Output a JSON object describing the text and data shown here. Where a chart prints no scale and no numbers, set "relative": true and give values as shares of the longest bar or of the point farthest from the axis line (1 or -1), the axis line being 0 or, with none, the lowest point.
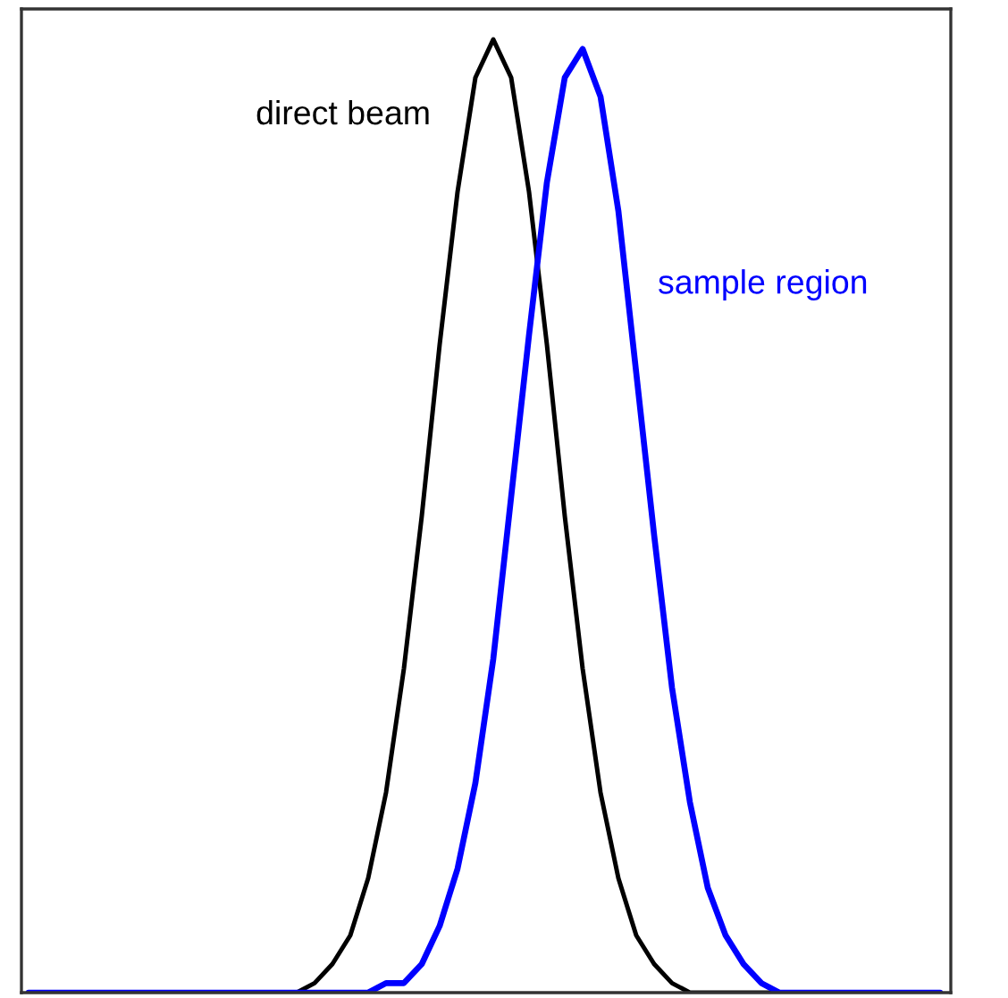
{
  "chart_data": {
    "type": "line",
    "relative": true,
    "legend": false,
    "marker": "none",
    "line_style": "solid",
    "categories": [
      null,
      null,
      null,
      null,
      null,
      null,
      null,
      null,
      null,
      null,
      null,
      null,
      null,
      null,
      null,
      null,
      null,
      null,
      null,
      null,
      null,
      null,
      null,
      null,
      null,
      null,
      null,
      null,
      null,
      null,
      null,
      null,
      null,
      null,
      null,
      null,
      null,
      null,
      null,
      null,
      null,
      null,
      null,
      null,
      null,
      null,
      null,
      null,
      null,
      null,
      null,
      null
    ],
    "series": [
      {
        "name": "direct beam",
        "color": "#000000",
        "values": [
          0,
          0,
          0,
          0,
          0,
          0,
          0,
          0,
          0,
          0,
          0,
          0,
          0,
          0,
          0,
          0,
          0.01,
          0.03,
          0.06,
          0.12,
          0.21,
          0.34,
          0.5,
          0.68,
          0.84,
          0.96,
          1,
          0.96,
          0.84,
          0.68,
          0.5,
          0.34,
          0.21,
          0.12,
          0.06,
          0.03,
          0.01,
          0,
          0,
          0,
          0,
          0,
          0,
          0,
          0,
          0,
          0,
          0,
          0,
          0,
          0,
          0
        ]
      },
      {
        "name": "sample region",
        "color": "#0000ff",
        "values": [
          0,
          0,
          0,
          0,
          0,
          0,
          0,
          0,
          0,
          0,
          0,
          0,
          0,
          0,
          0,
          0,
          0,
          0,
          0,
          0,
          0.01,
          0.01,
          0.03,
          0.07,
          0.13,
          0.22,
          0.35,
          0.52,
          0.69,
          0.85,
          0.96,
          0.99,
          0.94,
          0.82,
          0.65,
          0.48,
          0.32,
          0.2,
          0.11,
          0.06,
          0.03,
          0.01,
          0,
          0,
          0,
          0,
          0,
          0,
          0,
          0,
          0,
          0
        ]
      }
    ]
  }
}
